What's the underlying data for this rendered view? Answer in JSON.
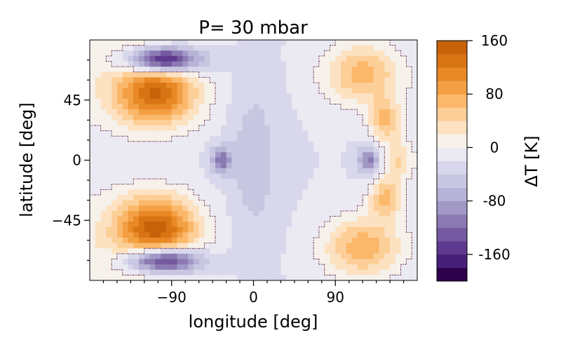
{
  "chart_data": {
    "type": "heatmap",
    "title": "P= 30 mbar",
    "xlabel": "longitude [deg]",
    "ylabel": "latitude [deg]",
    "xlim": [
      -180,
      180
    ],
    "ylim": [
      -90,
      90
    ],
    "x_ticks": [
      -90,
      0,
      90
    ],
    "x_tick_labels": [
      "−90",
      "0",
      "90"
    ],
    "y_ticks": [
      -45,
      0,
      45
    ],
    "y_tick_labels": [
      "−45",
      "0",
      "45"
    ],
    "colorbar": {
      "label": "ΔT [K]",
      "range": [
        -200,
        160
      ],
      "tick_values": [
        160,
        80,
        0,
        -80,
        -160
      ],
      "tick_labels": [
        "160",
        "80",
        "0",
        "-80",
        "-160"
      ],
      "levels": [
        -200,
        -180,
        -160,
        -140,
        -120,
        -100,
        -80,
        -60,
        -40,
        -20,
        0,
        20,
        40,
        60,
        80,
        100,
        120,
        140,
        160
      ],
      "colors": [
        "#2d004b",
        "#461f78",
        "#5e3a8e",
        "#7459a0",
        "#8b79b2",
        "#a198c6",
        "#b6b3d6",
        "#c8c6e1",
        "#d8d7eb",
        "#ebeaf3",
        "#f6f1ea",
        "#fde2c2",
        "#fdcf98",
        "#fbb86b",
        "#f3a045",
        "#e88926",
        "#d87413",
        "#c76209"
      ]
    },
    "zero_contour": "dashed",
    "features": [
      {
        "kind": "warm",
        "lon": -105,
        "lat": 50,
        "dT": 130
      },
      {
        "kind": "warm",
        "lon": -105,
        "lat": -52,
        "dT": 140
      },
      {
        "kind": "warm",
        "lon": 120,
        "lat": 65,
        "dT": 90
      },
      {
        "kind": "warm",
        "lon": 120,
        "lat": -65,
        "dT": 95
      },
      {
        "kind": "warm",
        "lon": 145,
        "lat": 30,
        "dT": 85
      },
      {
        "kind": "warm",
        "lon": 145,
        "lat": -28,
        "dT": 85
      },
      {
        "kind": "warm",
        "lon": 160,
        "lat": 0,
        "dT": 60
      },
      {
        "kind": "cold",
        "lon": -100,
        "lat": 75,
        "dT": -200
      },
      {
        "kind": "cold",
        "lon": -100,
        "lat": -75,
        "dT": -195
      },
      {
        "kind": "cold",
        "lon": -35,
        "lat": 0,
        "dT": -90
      },
      {
        "kind": "cold",
        "lon": 127,
        "lat": 0,
        "dT": -90
      },
      {
        "kind": "cold",
        "lon": 0,
        "lat": 0,
        "dT": -35
      }
    ]
  }
}
